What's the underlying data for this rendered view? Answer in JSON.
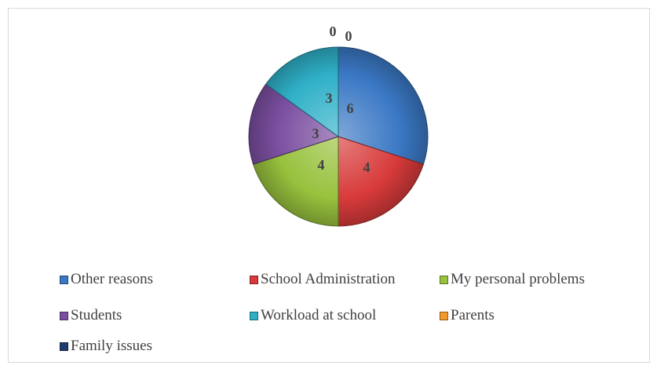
{
  "chart_data": {
    "type": "pie",
    "title": "",
    "categories": [
      "Other reasons",
      "School Administration",
      "My personal problems",
      "Students",
      "Workload at school",
      "Parents",
      "Family issues"
    ],
    "values": [
      6,
      4,
      4,
      3,
      3,
      0,
      0
    ],
    "data_labels": [
      "6",
      "4",
      "4",
      "3",
      "3",
      "0",
      "0"
    ],
    "colors": [
      "#3a78c4",
      "#d83a3a",
      "#98c13d",
      "#7a4ea0",
      "#2fb0c8",
      "#f39a2b",
      "#1f3c6e"
    ],
    "legend_position": "bottom",
    "start_angle": "top, clockwise"
  }
}
